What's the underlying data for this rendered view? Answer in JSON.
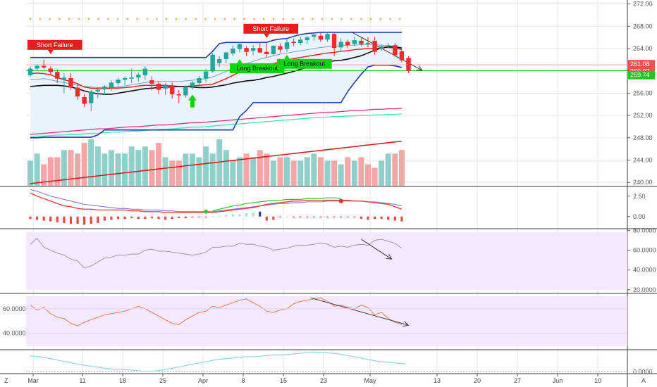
{
  "chart_data": {
    "type": "candlestick",
    "main_axis": {
      "ticks": [
        "272.00",
        "268.00",
        "264.00",
        "260.00",
        "256.00",
        "252.00",
        "248.00",
        "244.00",
        "240.00"
      ],
      "ylim": [
        239.4,
        272.7
      ],
      "price_tags": [
        {
          "label": "261.08",
          "value": 261.08,
          "color": "#ef5350"
        },
        {
          "label": "260.03",
          "value": 260.03,
          "color": "#ef5350"
        },
        {
          "label": "259.74",
          "value": 259.74,
          "color": "#22c322"
        }
      ]
    },
    "date_labels": [
      "Mar",
      "11",
      "18",
      "25",
      "Apr",
      "8",
      "15",
      "23",
      "May",
      "13",
      "20",
      "27",
      "Jun",
      "10"
    ],
    "candles": [
      [
        259.2,
        260.8,
        258.9,
        260.4
      ],
      [
        260.4,
        261.2,
        260.0,
        260.9
      ],
      [
        260.9,
        262.0,
        260.3,
        260.6
      ],
      [
        260.4,
        260.8,
        259.4,
        259.8
      ],
      [
        259.8,
        260.2,
        257.8,
        258.6
      ],
      [
        258.5,
        259.6,
        256.0,
        258.8
      ],
      [
        258.7,
        259.6,
        256.6,
        257.0
      ],
      [
        257.0,
        257.8,
        254.8,
        255.4
      ],
      [
        255.3,
        255.9,
        253.5,
        254.1
      ],
      [
        254.2,
        256.6,
        252.8,
        256.3
      ],
      [
        256.3,
        257.1,
        255.1,
        256.6
      ],
      [
        256.7,
        257.4,
        255.8,
        257.2
      ],
      [
        257.0,
        258.3,
        256.4,
        257.9
      ],
      [
        257.8,
        258.8,
        257.2,
        258.4
      ],
      [
        258.4,
        259.0,
        257.4,
        258.7
      ],
      [
        258.6,
        260.4,
        257.8,
        258.8
      ],
      [
        258.8,
        259.7,
        258.0,
        259.3
      ],
      [
        259.2,
        260.8,
        258.4,
        260.4
      ],
      [
        258.3,
        259.0,
        256.5,
        257.7
      ],
      [
        257.7,
        258.2,
        255.8,
        256.6
      ],
      [
        256.8,
        257.8,
        255.7,
        257.3
      ],
      [
        257.4,
        257.9,
        255.0,
        255.8
      ],
      [
        255.8,
        256.6,
        254.2,
        255.6
      ],
      [
        255.6,
        257.4,
        255.2,
        257.2
      ],
      [
        257.2,
        258.2,
        256.6,
        257.9
      ],
      [
        257.8,
        259.1,
        257.2,
        258.7
      ],
      [
        258.6,
        260.4,
        258.0,
        259.9
      ],
      [
        259.9,
        263.2,
        259.7,
        262.9
      ],
      [
        261.4,
        262.6,
        260.7,
        262.1
      ],
      [
        262.1,
        263.4,
        261.4,
        263.3
      ],
      [
        263.1,
        264.6,
        262.6,
        264.0
      ],
      [
        263.9,
        265.2,
        263.3,
        264.8
      ],
      [
        264.1,
        264.4,
        262.6,
        263.4
      ],
      [
        263.6,
        264.6,
        262.8,
        264.1
      ],
      [
        264.1,
        265.1,
        263.2,
        263.3
      ],
      [
        263.4,
        264.9,
        262.4,
        263.0
      ],
      [
        263.0,
        264.6,
        262.8,
        264.5
      ],
      [
        264.4,
        264.9,
        263.3,
        263.8
      ],
      [
        263.9,
        265.6,
        263.4,
        265.1
      ],
      [
        265.2,
        265.8,
        264.4,
        265.0
      ],
      [
        265.0,
        266.1,
        264.6,
        265.6
      ],
      [
        265.5,
        266.3,
        264.8,
        266.0
      ],
      [
        266.1,
        266.6,
        265.4,
        266.5
      ],
      [
        266.3,
        266.9,
        265.2,
        265.6
      ],
      [
        265.6,
        266.9,
        265.2,
        266.6
      ],
      [
        266.6,
        266.9,
        262.6,
        264.1
      ],
      [
        264.2,
        265.8,
        263.6,
        265.2
      ],
      [
        265.2,
        265.6,
        264.1,
        264.6
      ],
      [
        264.8,
        266.1,
        264.4,
        265.5
      ],
      [
        265.4,
        265.9,
        264.4,
        264.8
      ],
      [
        265.0,
        266.1,
        264.2,
        264.9
      ],
      [
        265.4,
        266.1,
        262.9,
        263.4
      ],
      [
        264.0,
        264.7,
        263.5,
        264.4
      ],
      [
        264.5,
        265.0,
        264.1,
        264.6
      ],
      [
        264.6,
        265.0,
        262.5,
        262.8
      ],
      [
        263.5,
        263.8,
        261.5,
        261.9
      ],
      [
        262.3,
        262.6,
        259.6,
        260.0
      ]
    ],
    "volume": [
      7,
      9,
      6,
      8,
      8,
      10,
      10,
      9,
      12,
      13,
      11,
      9,
      10,
      9,
      9,
      11,
      10,
      11,
      10,
      12,
      8,
      7,
      7,
      9,
      9,
      8,
      11,
      9,
      13,
      10,
      7,
      8,
      9,
      8,
      10,
      9,
      7,
      8,
      8,
      7,
      7,
      8,
      9,
      8,
      7,
      7,
      6,
      8,
      7,
      8,
      6,
      5,
      7,
      9,
      9,
      10
    ],
    "volume_ma_axis": [
      241.0,
      245.2
    ],
    "overlays": {
      "channel_upper": [
        262.4,
        262.4,
        262.4,
        262.4,
        262.4,
        262.4,
        262.4,
        262.4,
        262.4,
        262.4,
        262.4,
        262.4,
        262.4,
        262.4,
        262.4,
        262.4,
        262.4,
        262.4,
        262.4,
        262.4,
        262.4,
        262.4,
        262.4,
        262.4,
        262.4,
        262.4,
        262.4,
        263.5,
        264.9,
        265.1,
        265.1,
        265.1,
        265.1,
        265.1,
        265.1,
        265.1,
        265.5,
        265.7,
        265.8,
        266.2,
        266.5,
        266.7,
        266.8,
        266.9,
        266.9,
        266.9,
        266.9,
        266.9,
        266.9,
        266.9,
        266.9,
        266.9,
        266.9,
        266.9,
        266.9,
        266.9
      ],
      "channel_lower": [
        248.0,
        248.0,
        248.1,
        248.1,
        248.1,
        248.1,
        248.1,
        248.1,
        248.1,
        248.1,
        248.5,
        249.4,
        249.4,
        249.4,
        249.4,
        249.4,
        249.4,
        249.4,
        249.4,
        249.4,
        249.4,
        249.4,
        249.4,
        249.4,
        249.4,
        249.4,
        249.4,
        249.4,
        249.4,
        249.4,
        249.4,
        251.8,
        252.9,
        254.3,
        254.3,
        254.3,
        254.3,
        254.3,
        254.3,
        254.3,
        254.3,
        254.3,
        254.3,
        254.3,
        254.3,
        254.3,
        254.3,
        256.3,
        257.9,
        259.4,
        260.7,
        261.0,
        261.0,
        261.0,
        260.9,
        260.6
      ],
      "ma_red": [
        259.5,
        259.6,
        259.5,
        259.3,
        258.8,
        258.4,
        258.1,
        257.7,
        257.1,
        256.9,
        256.8,
        256.8,
        256.9,
        256.9,
        257.0,
        257.1,
        257.3,
        257.4,
        257.4,
        257.4,
        257.4,
        257.3,
        257.2,
        257.2,
        257.3,
        257.4,
        257.5,
        257.6,
        258.1,
        258.6,
        259.2,
        259.8,
        260.2,
        260.6,
        260.9,
        261.1,
        261.3,
        261.6,
        261.9,
        262.2,
        262.4,
        262.6,
        262.8,
        263.0,
        263.2,
        263.3,
        263.5,
        263.6,
        263.8,
        263.9,
        264.0,
        264.0,
        264.1,
        264.2,
        264.1,
        263.8
      ],
      "ma_black": [
        257.2,
        257.3,
        257.4,
        257.4,
        257.4,
        257.3,
        257.1,
        256.8,
        256.4,
        256.1,
        255.9,
        255.8,
        255.8,
        256.0,
        256.2,
        256.4,
        256.6,
        256.8,
        256.9,
        257.0,
        257.1,
        257.1,
        257.2,
        257.2,
        257.1,
        257.0,
        257.0,
        257.1,
        257.3,
        257.5,
        257.8,
        258.0,
        258.2,
        258.3,
        258.5,
        258.8,
        259.0,
        259.3,
        259.6,
        259.9,
        260.3,
        260.6,
        261.0,
        261.4,
        261.6,
        261.8,
        261.9,
        262.1,
        262.4,
        262.7,
        263.2,
        263.7,
        264.1,
        264.3,
        264.3,
        264.1
      ],
      "ma_light": [
        258.4,
        258.5,
        258.6,
        258.4,
        258.1,
        257.9,
        257.7,
        257.4,
        257.2,
        257.1,
        257.0,
        257.0,
        257.0,
        257.1,
        257.3,
        257.5,
        257.7,
        257.9,
        258.0,
        258.1,
        258.1,
        258.1,
        258.1,
        258.2,
        258.3,
        258.4,
        258.6,
        258.9,
        259.4,
        259.9,
        260.4,
        260.9,
        261.3,
        261.7,
        262.1,
        262.4,
        262.7,
        263.0,
        263.2,
        263.4,
        263.6,
        263.8,
        264.0,
        264.2,
        264.3,
        264.4,
        264.5,
        264.6,
        264.6,
        264.7,
        264.7,
        264.7,
        264.6,
        264.5,
        264.3,
        263.9
      ],
      "ma_magenta": [
        248.6,
        248.7,
        248.8,
        248.9,
        249.0,
        249.1,
        249.2,
        249.3,
        249.4,
        249.5,
        249.6,
        249.6,
        249.7,
        249.8,
        249.9,
        250.0,
        250.0,
        250.1,
        250.2,
        250.3,
        250.3,
        250.4,
        250.5,
        250.6,
        250.7,
        250.7,
        250.8,
        250.9,
        251.0,
        251.1,
        251.2,
        251.3,
        251.4,
        251.5,
        251.6,
        251.7,
        251.8,
        251.9,
        252.0,
        252.1,
        252.2,
        252.3,
        252.4,
        252.5,
        252.6,
        252.6,
        252.7,
        252.8,
        252.9,
        252.9,
        253.0,
        253.1,
        253.1,
        253.2,
        253.2,
        253.3
      ],
      "ma_mint": [
        248.2,
        248.3,
        248.3,
        248.4,
        248.5,
        248.5,
        248.6,
        248.6,
        248.7,
        248.8,
        248.8,
        248.9,
        249.0,
        249.0,
        249.1,
        249.2,
        249.2,
        249.3,
        249.4,
        249.5,
        249.5,
        249.6,
        249.7,
        249.8,
        249.9,
        249.9,
        250.0,
        250.1,
        250.2,
        250.3,
        250.4,
        250.5,
        250.6,
        250.7,
        250.8,
        250.9,
        251.0,
        251.1,
        251.2,
        251.3,
        251.4,
        251.5,
        251.6,
        251.6,
        251.7,
        251.8,
        251.8,
        251.9,
        251.9,
        252.0,
        252.0,
        252.1,
        252.1,
        252.2,
        252.2,
        252.3
      ]
    },
    "reference_lines": [
      {
        "value": 260.03,
        "color": "#22c322"
      },
      {
        "value": 261.08,
        "color": "#f3a1a1"
      },
      {
        "value": 269.3,
        "color": "#ff8c1a",
        "style": "dots"
      }
    ],
    "trendlines": [
      {
        "panel": "main",
        "from": [
          47.5,
          267.0
        ],
        "to": [
          58.0,
          260.1
        ]
      }
    ],
    "signals": [
      {
        "label": "Short Failure",
        "index": 3,
        "value": 262.0,
        "kind": "short"
      },
      {
        "label": "Short Failure",
        "index": 35,
        "value": 264.9,
        "kind": "short"
      },
      {
        "label": "Long Breakout",
        "index": 31,
        "value": 262.6,
        "kind": "long"
      },
      {
        "label": "Long Breakout",
        "index": 38,
        "value": 263.4,
        "kind": "long"
      },
      {
        "label": "",
        "index": 24,
        "value": 254.2,
        "kind": "arrow-up"
      }
    ],
    "panel_macd": {
      "ticks": [
        "2.50",
        "0.00"
      ],
      "ylim": [
        -1.4,
        3.6
      ],
      "line_purple": [
        3.3,
        3.1,
        2.8,
        2.5,
        2.3,
        2.1,
        1.9,
        1.7,
        1.5,
        1.4,
        1.3,
        1.2,
        1.1,
        1.0,
        1.0,
        0.9,
        0.9,
        0.8,
        0.8,
        0.8,
        0.7,
        0.7,
        0.6,
        0.6,
        0.6,
        0.6,
        0.6,
        0.6,
        0.7,
        0.8,
        0.9,
        1.0,
        1.1,
        1.2,
        1.3,
        1.4,
        1.5,
        1.6,
        1.6,
        1.7,
        1.7,
        1.8,
        1.8,
        1.8,
        1.9,
        1.9,
        1.9,
        1.9,
        1.9,
        1.9,
        1.8,
        1.8,
        1.7,
        1.6,
        1.5,
        1.3
      ],
      "line_red": [
        2.9,
        2.5,
        2.2,
        1.9,
        1.6,
        1.3,
        1.2,
        1.0,
        0.9,
        0.9,
        0.8,
        0.8,
        0.8,
        0.8,
        0.8,
        0.7,
        0.7,
        0.6,
        0.6,
        0.6,
        0.5,
        0.5,
        0.5,
        0.5,
        0.5,
        0.5,
        0.5,
        0.5,
        0.6,
        0.7,
        0.8,
        0.9,
        1.0,
        1.1,
        1.3,
        1.5,
        1.6,
        1.7,
        1.8,
        1.9,
        1.9,
        2.0,
        2.0,
        2.0,
        2.0,
        2.0,
        2.0,
        2.0,
        1.9,
        1.9,
        1.8,
        1.7,
        1.6,
        1.5,
        1.2,
        0.9
      ],
      "line_green": [
        null,
        null,
        null,
        null,
        null,
        null,
        null,
        null,
        null,
        null,
        null,
        null,
        null,
        null,
        null,
        null,
        null,
        null,
        null,
        null,
        null,
        null,
        null,
        null,
        null,
        null,
        null,
        0.7,
        0.9,
        1.1,
        1.3,
        1.4,
        1.6,
        1.7,
        1.8,
        1.9,
        2.0,
        2.0,
        2.1,
        2.1,
        2.1,
        2.2,
        2.2,
        2.2,
        2.3,
        2.3,
        2.2,
        null,
        null,
        null,
        null,
        null,
        null,
        null,
        null,
        null
      ],
      "hist": [
        -0.3,
        -0.4,
        -0.5,
        -0.6,
        -0.7,
        -0.8,
        -0.9,
        -0.9,
        -1.0,
        -0.9,
        -0.8,
        -0.5,
        -0.4,
        -0.3,
        -0.3,
        -0.2,
        -0.3,
        -0.3,
        -0.2,
        -0.3,
        -0.4,
        -0.3,
        -0.2,
        -0.2,
        -0.1,
        -0.1,
        -0.1,
        0.0,
        0.1,
        0.2,
        0.3,
        0.3,
        0.4,
        0.5,
        0.6,
        -0.5,
        -0.4,
        -0.1,
        0.0,
        -0.1,
        -0.1,
        -0.1,
        -0.1,
        -0.1,
        -0.1,
        -0.1,
        -0.1,
        -0.1,
        -0.1,
        -0.3,
        -0.4,
        -0.3,
        -0.3,
        -0.4,
        -0.5,
        -0.6
      ],
      "markers": [
        {
          "index": 26,
          "value": 0.6,
          "color": "#3ec43e"
        },
        {
          "index": 46,
          "value": 1.9,
          "color": "#ef2b2b"
        }
      ]
    },
    "panel_osc1": {
      "ticks": [
        "80.0000",
        "60.0000",
        "40.0000",
        "20.0000"
      ],
      "ylim": [
        17.0,
        81.0
      ],
      "series": [
        66,
        72,
        63,
        60,
        57,
        55,
        51,
        49,
        42,
        44,
        48,
        52,
        53,
        55,
        55,
        56,
        56,
        60,
        61,
        59,
        59,
        58,
        57,
        56,
        55,
        56,
        58,
        63,
        63,
        64,
        64,
        67,
        66,
        66,
        64,
        63,
        60,
        61,
        62,
        64,
        65,
        65,
        66,
        67,
        66,
        63,
        64,
        63,
        65,
        66,
        65,
        70,
        71,
        69,
        67,
        62
      ],
      "trendline": {
        "from": [
          49.0,
          71.0
        ],
        "to": [
          53.5,
          51.0
        ]
      }
    },
    "panel_osc2": {
      "ticks": [
        "60.0000",
        "40.0000"
      ],
      "ylim": [
        27.0,
        72.0
      ],
      "series": [
        63,
        59,
        61,
        56,
        53,
        52,
        48,
        46,
        49,
        51,
        53,
        55,
        56,
        57,
        58,
        60,
        62,
        60,
        57,
        54,
        51,
        48,
        47,
        51,
        54,
        57,
        58,
        62,
        61,
        63,
        65,
        67,
        68,
        65,
        62,
        58,
        57,
        59,
        60,
        64,
        66,
        67,
        68,
        69,
        66,
        62,
        63,
        61,
        60,
        63,
        61,
        55,
        57,
        52,
        49,
        47
      ],
      "trendline": {
        "from": [
          41.5,
          69.0
        ],
        "to": [
          56.0,
          46.5
        ]
      }
    },
    "panel_osc3": {
      "ticks": [
        "0.0000"
      ],
      "ylim": [
        -0.2,
        2.3
      ],
      "series": [
        1.7,
        1.6,
        1.4,
        1.2,
        1.0,
        0.8,
        0.6,
        0.5,
        0.3,
        0.2,
        0.2,
        0.1,
        0.0,
        0.0,
        0.1,
        0.3,
        0.5,
        0.7,
        0.9,
        1.1,
        1.3,
        1.4,
        1.5,
        1.6,
        1.6,
        1.7,
        1.8,
        1.8,
        1.9,
        2.0,
        2.1,
        2.1,
        2.0,
        1.9,
        1.7,
        1.5,
        1.3,
        1.1,
        1.0,
        0.9,
        0.8
      ]
    },
    "corner_buttons": {
      "left": "Z",
      "right": "A"
    }
  },
  "colors": {
    "bull": "#26a69a",
    "bear": "#ef2b2b",
    "vol_bull": "#8fd0cb",
    "vol_bear": "#f4a5a5",
    "channel": "#1c3ea8",
    "channel_fill": "#eaf3fc",
    "panel_fill": "#f3e8fd",
    "grid": "#e6e6e6"
  }
}
